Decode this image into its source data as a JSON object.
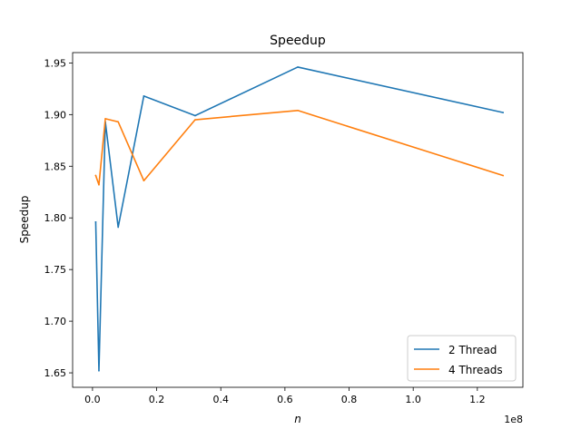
{
  "chart_data": {
    "type": "line",
    "title": "Speedup",
    "xlabel": "n",
    "ylabel": "Speedup",
    "x_offset_label": "1e8",
    "xlim": [
      -6200000,
      134200000
    ],
    "ylim": [
      1.636,
      1.96
    ],
    "x_ticks": [
      0,
      20000000,
      40000000,
      60000000,
      80000000,
      100000000,
      120000000
    ],
    "x_tick_labels": [
      "0.0",
      "0.2",
      "0.4",
      "0.6",
      "0.8",
      "1.0",
      "1.2"
    ],
    "y_ticks": [
      1.65,
      1.7,
      1.75,
      1.8,
      1.85,
      1.9,
      1.95
    ],
    "y_tick_labels": [
      "1.65",
      "1.70",
      "1.75",
      "1.80",
      "1.85",
      "1.90",
      "1.95"
    ],
    "grid": false,
    "legend_position": "lower-right",
    "series": [
      {
        "name": "2 Thread",
        "color": "#1f77b4",
        "x": [
          1000000,
          2000000,
          4000000,
          8000000,
          16000000,
          32000000,
          64000000,
          128000000
        ],
        "y": [
          1.796,
          1.652,
          1.893,
          1.791,
          1.918,
          1.899,
          1.946,
          1.902
        ]
      },
      {
        "name": "4 Threads",
        "color": "#ff7f0e",
        "x": [
          1000000,
          2000000,
          4000000,
          8000000,
          16000000,
          32000000,
          64000000,
          128000000
        ],
        "y": [
          1.841,
          1.832,
          1.896,
          1.893,
          1.836,
          1.895,
          1.904,
          1.841
        ]
      }
    ]
  }
}
